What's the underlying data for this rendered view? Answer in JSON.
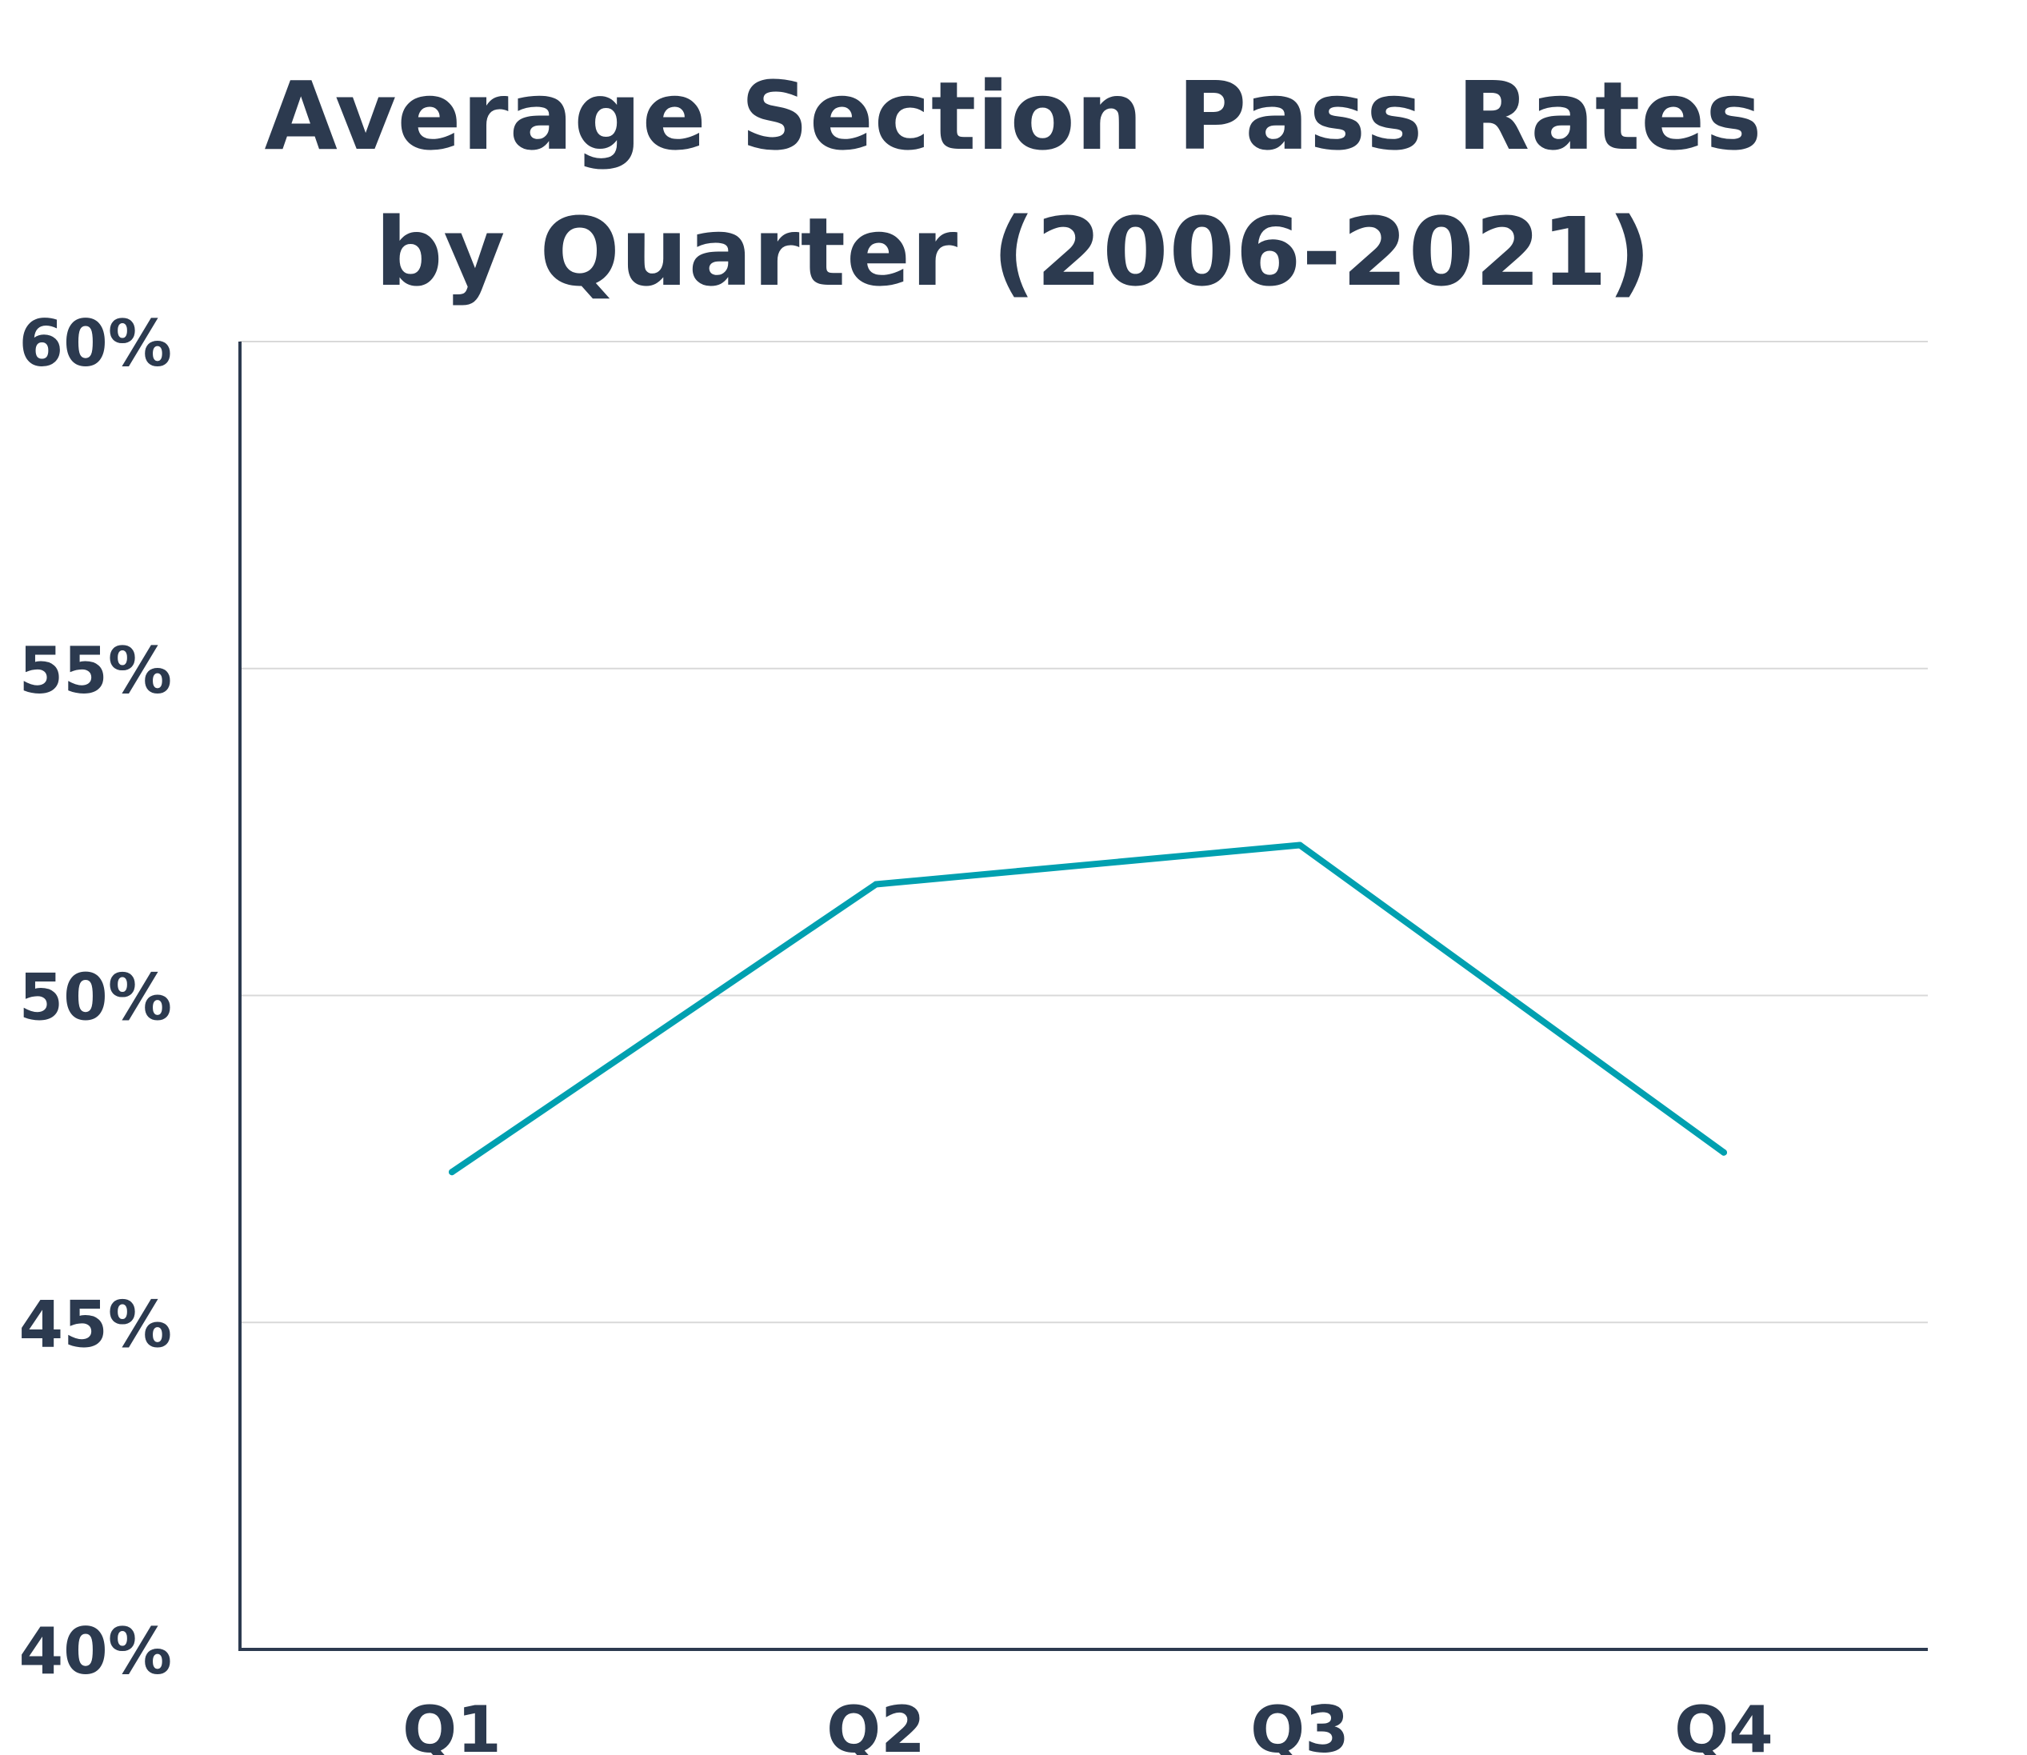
{
  "chart_data": {
    "type": "line",
    "title_lines": [
      "Average Section Pass Rates",
      "by Quarter (2006-2021)"
    ],
    "categories": [
      "Q1",
      "Q2",
      "Q3",
      "Q4"
    ],
    "series": [
      {
        "values": [
          47.3,
          51.7,
          52.3,
          47.6
        ],
        "color": "#00a0b0"
      }
    ],
    "ylim": [
      40,
      60
    ],
    "yticks": [
      40,
      45,
      50,
      55,
      60
    ],
    "ytick_labels": [
      "40%",
      "45%",
      "50%",
      "55%",
      "60%"
    ],
    "xlabel": "",
    "ylabel": "",
    "grid": true,
    "legend": false,
    "colors": {
      "text": "#2c3a4f",
      "axis": "#2c3a4f",
      "grid": "#d9d9d9"
    }
  }
}
